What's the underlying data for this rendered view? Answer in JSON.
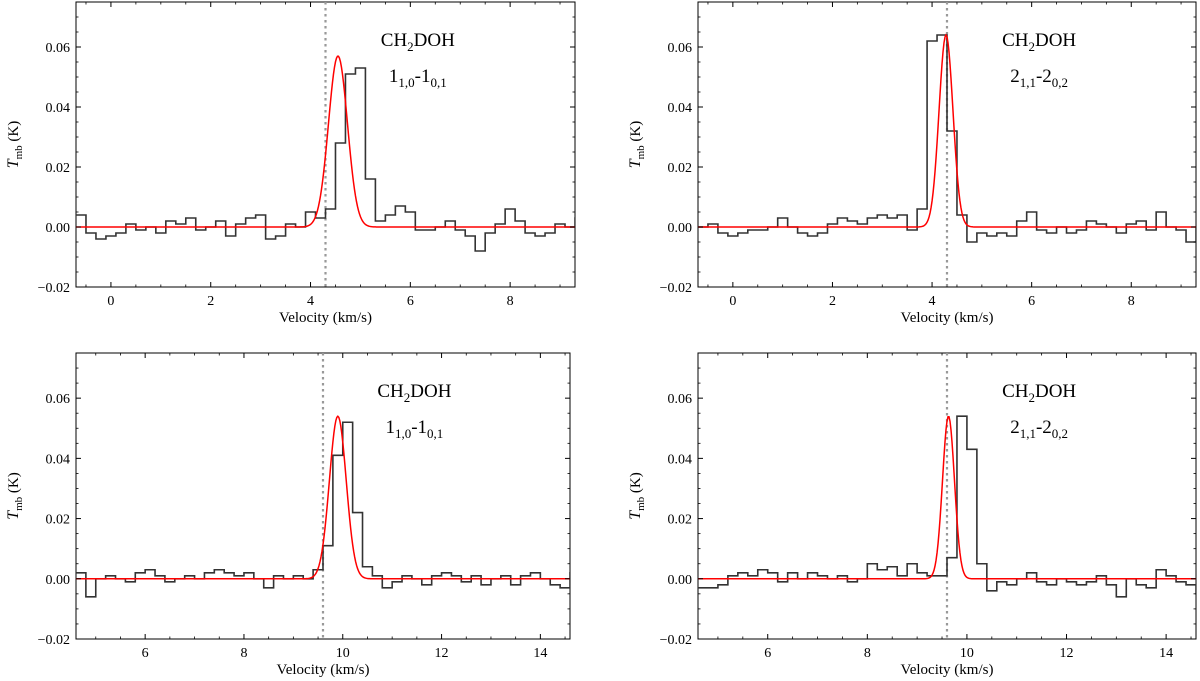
{
  "figure": {
    "panels": [
      {
        "id": "a",
        "title": "CH2DOH"
      },
      {
        "id": "b",
        "title": "CH2DOH"
      },
      {
        "id": "c",
        "title": "CH2DOH"
      },
      {
        "id": "d",
        "title": "CH2DOH"
      }
    ]
  },
  "chart_data": [
    {
      "type": "line",
      "title_parts": [
        "CH",
        "2",
        "DOH"
      ],
      "transition_parts": [
        "1",
        "1,0",
        "-1",
        "0,1"
      ],
      "xlabel": "Velocity (km/s)",
      "ylabel_parts": [
        "T",
        "mb",
        " (K)"
      ],
      "xlim": [
        -0.7,
        9.3
      ],
      "ylim": [
        -0.02,
        0.075
      ],
      "xticks": [
        0,
        2,
        4,
        6,
        8
      ],
      "xtick_labels": [
        "0",
        "2",
        "4",
        "6",
        "8"
      ],
      "yticks": [
        -0.02,
        0.0,
        0.02,
        0.04,
        0.06
      ],
      "ytick_labels": [
        "−0.02",
        "0.00",
        "0.02",
        "0.04",
        "0.06"
      ],
      "vline": 4.3,
      "series": [
        {
          "name": "observed",
          "kind": "step",
          "color": "#333333",
          "x0": -0.7,
          "dx": 0.2,
          "values": [
            0.004,
            -0.002,
            -0.004,
            -0.003,
            -0.002,
            0.001,
            -0.001,
            0.0,
            -0.002,
            0.002,
            0.001,
            0.003,
            -0.001,
            0.0,
            0.002,
            -0.003,
            0.001,
            0.003,
            0.004,
            -0.004,
            -0.003,
            0.001,
            0.0,
            0.005,
            0.003,
            0.006,
            0.028,
            0.051,
            0.053,
            0.016,
            0.002,
            0.004,
            0.007,
            0.005,
            -0.001,
            -0.001,
            0.0,
            0.002,
            -0.001,
            -0.003,
            -0.008,
            -0.002,
            0.001,
            0.006,
            0.002,
            -0.002,
            -0.003,
            -0.002,
            0.001,
            0.0,
            0.003
          ]
        },
        {
          "name": "gaussian fit",
          "kind": "gaussian",
          "color": "#ff0000",
          "amp": 0.057,
          "center": 4.55,
          "sigma": 0.19
        }
      ]
    },
    {
      "type": "line",
      "title_parts": [
        "CH",
        "2",
        "DOH"
      ],
      "transition_parts": [
        "2",
        "1,1",
        "-2",
        "0,2"
      ],
      "xlabel": "Velocity (km/s)",
      "ylabel_parts": [
        "T",
        "mb",
        " (K)"
      ],
      "xlim": [
        -0.7,
        9.3
      ],
      "ylim": [
        -0.02,
        0.075
      ],
      "xticks": [
        0,
        2,
        4,
        6,
        8
      ],
      "xtick_labels": [
        "0",
        "2",
        "4",
        "6",
        "8"
      ],
      "yticks": [
        -0.02,
        0.0,
        0.02,
        0.04,
        0.06
      ],
      "ytick_labels": [
        "−0.02",
        "0.00",
        "0.02",
        "0.04",
        "0.06"
      ],
      "vline": 4.3,
      "series": [
        {
          "name": "observed",
          "kind": "step",
          "color": "#333333",
          "x0": -0.7,
          "dx": 0.2,
          "values": [
            0.0,
            0.001,
            -0.002,
            -0.003,
            -0.002,
            -0.001,
            -0.001,
            0.0,
            0.003,
            0.0,
            -0.002,
            -0.003,
            -0.002,
            0.001,
            0.003,
            0.002,
            0.001,
            0.003,
            0.004,
            0.003,
            0.004,
            -0.001,
            0.006,
            0.062,
            0.064,
            0.032,
            0.004,
            -0.005,
            -0.002,
            -0.003,
            -0.002,
            -0.003,
            0.002,
            0.005,
            -0.001,
            -0.002,
            0.0,
            -0.002,
            -0.001,
            0.002,
            0.001,
            0.0,
            -0.002,
            0.001,
            0.002,
            -0.001,
            0.005,
            0.0,
            -0.001,
            -0.005,
            0.0
          ]
        },
        {
          "name": "gaussian fit",
          "kind": "gaussian",
          "color": "#ff0000",
          "amp": 0.064,
          "center": 4.28,
          "sigma": 0.14
        }
      ]
    },
    {
      "type": "line",
      "title_parts": [
        "CH",
        "2",
        "DOH"
      ],
      "transition_parts": [
        "1",
        "1,0",
        "-1",
        "0,1"
      ],
      "xlabel": "Velocity (km/s)",
      "ylabel_parts": [
        "T",
        "mb",
        " (K)"
      ],
      "xlim": [
        4.6,
        14.6
      ],
      "ylim": [
        -0.02,
        0.075
      ],
      "xticks": [
        6,
        8,
        10,
        12,
        14
      ],
      "xtick_labels": [
        "6",
        "8",
        "10",
        "12",
        "14"
      ],
      "yticks": [
        -0.02,
        0.0,
        0.02,
        0.04,
        0.06
      ],
      "ytick_labels": [
        "−0.02",
        "0.00",
        "0.02",
        "0.04",
        "0.06"
      ],
      "vline": 9.6,
      "series": [
        {
          "name": "observed",
          "kind": "step",
          "color": "#333333",
          "x0": 4.6,
          "dx": 0.2,
          "values": [
            0.002,
            -0.006,
            0.0,
            0.001,
            0.0,
            -0.001,
            0.002,
            0.003,
            0.001,
            -0.001,
            0.0,
            0.001,
            0.0,
            0.002,
            0.003,
            0.002,
            0.001,
            0.002,
            0.0,
            -0.003,
            0.001,
            0.0,
            0.001,
            0.0,
            0.003,
            0.011,
            0.041,
            0.052,
            0.022,
            0.004,
            0.001,
            -0.003,
            -0.001,
            0.001,
            0.0,
            -0.002,
            0.001,
            0.002,
            0.001,
            -0.001,
            0.001,
            -0.002,
            0.0,
            0.001,
            -0.002,
            0.001,
            0.002,
            0.0,
            -0.002,
            -0.003,
            0.002
          ]
        },
        {
          "name": "gaussian fit",
          "kind": "gaussian",
          "color": "#ff0000",
          "amp": 0.054,
          "center": 9.9,
          "sigma": 0.17
        }
      ]
    },
    {
      "type": "line",
      "title_parts": [
        "CH",
        "2",
        "DOH"
      ],
      "transition_parts": [
        "2",
        "1,1",
        "-2",
        "0,2"
      ],
      "xlabel": "Velocity (km/s)",
      "ylabel_parts": [
        "T",
        "mb",
        " (K)"
      ],
      "xlim": [
        4.6,
        14.6
      ],
      "ylim": [
        -0.02,
        0.075
      ],
      "xticks": [
        6,
        8,
        10,
        12,
        14
      ],
      "xtick_labels": [
        "6",
        "8",
        "10",
        "12",
        "14"
      ],
      "yticks": [
        -0.02,
        0.0,
        0.02,
        0.04,
        0.06
      ],
      "ytick_labels": [
        "−0.02",
        "0.00",
        "0.02",
        "0.04",
        "0.06"
      ],
      "vline": 9.6,
      "series": [
        {
          "name": "observed",
          "kind": "step",
          "color": "#333333",
          "x0": 4.6,
          "dx": 0.2,
          "values": [
            -0.003,
            -0.003,
            -0.002,
            0.001,
            0.002,
            0.001,
            0.003,
            0.002,
            -0.001,
            0.002,
            0.0,
            0.002,
            0.001,
            0.0,
            0.001,
            -0.001,
            0.0,
            0.005,
            0.003,
            0.004,
            0.001,
            0.005,
            0.002,
            0.001,
            0.001,
            0.007,
            0.054,
            0.043,
            0.005,
            -0.004,
            -0.001,
            -0.002,
            0.0,
            0.002,
            -0.001,
            -0.002,
            0.0,
            -0.001,
            -0.002,
            -0.001,
            0.001,
            -0.002,
            -0.006,
            0.0,
            -0.002,
            -0.003,
            0.003,
            0.001,
            -0.001,
            -0.002,
            -0.005
          ]
        },
        {
          "name": "gaussian fit",
          "kind": "gaussian",
          "color": "#ff0000",
          "amp": 0.054,
          "center": 9.63,
          "sigma": 0.12
        }
      ]
    }
  ]
}
